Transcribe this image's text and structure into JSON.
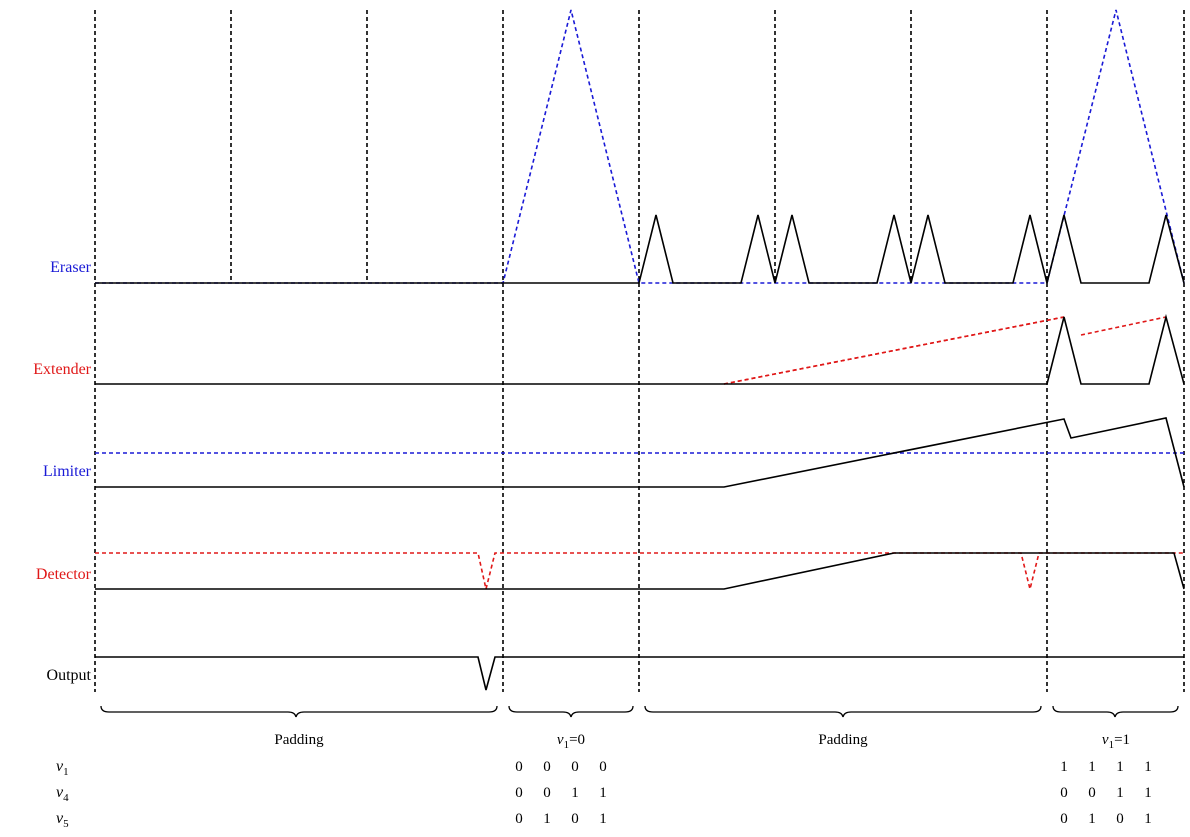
{
  "signals": [
    {
      "key": "eraser",
      "label": "Eraser",
      "color": "#1a1ad6"
    },
    {
      "key": "extender",
      "label": "Extender",
      "color": "#e01818"
    },
    {
      "key": "limiter",
      "label": "Limiter",
      "color": "#1a1ad6"
    },
    {
      "key": "detector",
      "label": "Detector",
      "color": "#e01818"
    },
    {
      "key": "output",
      "label": "Output",
      "color": "#000000"
    }
  ],
  "phases": [
    {
      "label": "Padding"
    },
    {
      "label_var": "v",
      "label_sub": "1",
      "label_rest": "=0"
    },
    {
      "label": "Padding"
    },
    {
      "label_var": "v",
      "label_sub": "1",
      "label_rest": "=1"
    }
  ],
  "table": {
    "rows": [
      {
        "var": "v",
        "sub": "1",
        "left": [
          "0",
          "0",
          "0",
          "0"
        ],
        "right": [
          "1",
          "1",
          "1",
          "1"
        ]
      },
      {
        "var": "v",
        "sub": "4",
        "left": [
          "0",
          "0",
          "1",
          "1"
        ],
        "right": [
          "0",
          "0",
          "1",
          "1"
        ]
      },
      {
        "var": "v",
        "sub": "5",
        "left": [
          "0",
          "1",
          "0",
          "1"
        ],
        "right": [
          "0",
          "1",
          "0",
          "1"
        ]
      }
    ]
  },
  "colors": {
    "black": "#000000",
    "blue": "#1a1ad6",
    "red": "#e01818"
  }
}
